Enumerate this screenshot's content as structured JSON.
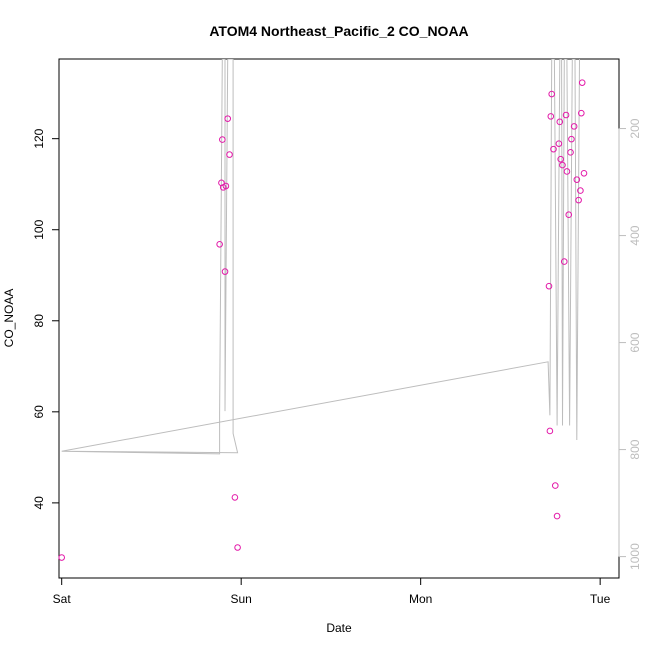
{
  "chart_data": {
    "type": "scatter",
    "title": "ATOM4 Northeast_Pacific_2 CO_NOAA",
    "xlabel": "Date",
    "ylabel": "CO_NOAA",
    "xlim": [
      -0.015,
      3.105
    ],
    "ylim": [
      23.5,
      137.5
    ],
    "x_ticks": [
      {
        "value": 0,
        "label": "Sat"
      },
      {
        "value": 1,
        "label": "Sun"
      },
      {
        "value": 2,
        "label": "Mon"
      },
      {
        "value": 3,
        "label": "Tue"
      }
    ],
    "y_ticks": [
      40,
      60,
      80,
      100,
      120
    ],
    "y2_ticks": [
      200,
      400,
      600,
      800,
      1000
    ],
    "y2lim": [
      70,
      1040
    ],
    "grid": false,
    "colors": {
      "points": "#e31aa9",
      "line": "#bdbdbd",
      "axis": "#000000",
      "secondary_axis": "#bdbdbd"
    },
    "series": [
      {
        "points": [
          {
            "x": 0.0,
            "y": 28.0
          },
          {
            "x": 0.88,
            "y": 96.8
          },
          {
            "x": 0.89,
            "y": 110.3
          },
          {
            "x": 0.895,
            "y": 119.8
          },
          {
            "x": 0.9,
            "y": 109.3
          },
          {
            "x": 0.91,
            "y": 90.8
          },
          {
            "x": 0.915,
            "y": 109.6
          },
          {
            "x": 0.925,
            "y": 124.4
          },
          {
            "x": 0.935,
            "y": 116.5
          },
          {
            "x": 0.965,
            "y": 41.2
          },
          {
            "x": 0.98,
            "y": 30.2
          },
          {
            "x": 2.715,
            "y": 87.6
          },
          {
            "x": 2.72,
            "y": 55.8
          },
          {
            "x": 2.725,
            "y": 124.9
          },
          {
            "x": 2.73,
            "y": 129.8
          },
          {
            "x": 2.74,
            "y": 117.7
          },
          {
            "x": 2.75,
            "y": 43.8
          },
          {
            "x": 2.76,
            "y": 37.1
          },
          {
            "x": 2.77,
            "y": 118.9
          },
          {
            "x": 2.775,
            "y": 123.7
          },
          {
            "x": 2.78,
            "y": 115.5
          },
          {
            "x": 2.79,
            "y": 114.2
          },
          {
            "x": 2.8,
            "y": 93.0
          },
          {
            "x": 2.81,
            "y": 125.2
          },
          {
            "x": 2.815,
            "y": 112.8
          },
          {
            "x": 2.825,
            "y": 103.3
          },
          {
            "x": 2.835,
            "y": 117.0
          },
          {
            "x": 2.84,
            "y": 119.9
          },
          {
            "x": 2.855,
            "y": 122.7
          },
          {
            "x": 2.87,
            "y": 111.0
          },
          {
            "x": 2.88,
            "y": 106.5
          },
          {
            "x": 2.89,
            "y": 108.6
          },
          {
            "x": 2.895,
            "y": 125.6
          },
          {
            "x": 2.9,
            "y": 132.3
          },
          {
            "x": 2.91,
            "y": 112.4
          }
        ]
      },
      {
        "axis": "right",
        "points": [
          {
            "x": 0.0,
            "y": 803
          },
          {
            "x": 0.88,
            "y": 808
          },
          {
            "x": 0.88,
            "y": 735
          },
          {
            "x": 0.895,
            "y": 70
          },
          {
            "x": 0.91,
            "y": 70
          },
          {
            "x": 0.91,
            "y": 728
          },
          {
            "x": 0.925,
            "y": 70
          },
          {
            "x": 0.955,
            "y": 70
          },
          {
            "x": 0.955,
            "y": 770
          },
          {
            "x": 0.98,
            "y": 806
          },
          {
            "x": 0.0,
            "y": 803
          },
          {
            "x": 2.71,
            "y": 636
          },
          {
            "x": 2.72,
            "y": 736
          },
          {
            "x": 2.73,
            "y": 70
          },
          {
            "x": 2.745,
            "y": 70
          },
          {
            "x": 2.76,
            "y": 755
          },
          {
            "x": 2.775,
            "y": 70
          },
          {
            "x": 2.785,
            "y": 70
          },
          {
            "x": 2.79,
            "y": 755
          },
          {
            "x": 2.8,
            "y": 70
          },
          {
            "x": 2.815,
            "y": 70
          },
          {
            "x": 2.83,
            "y": 755
          },
          {
            "x": 2.845,
            "y": 70
          },
          {
            "x": 2.86,
            "y": 70
          },
          {
            "x": 2.87,
            "y": 782
          },
          {
            "x": 2.885,
            "y": 70
          }
        ]
      }
    ]
  }
}
